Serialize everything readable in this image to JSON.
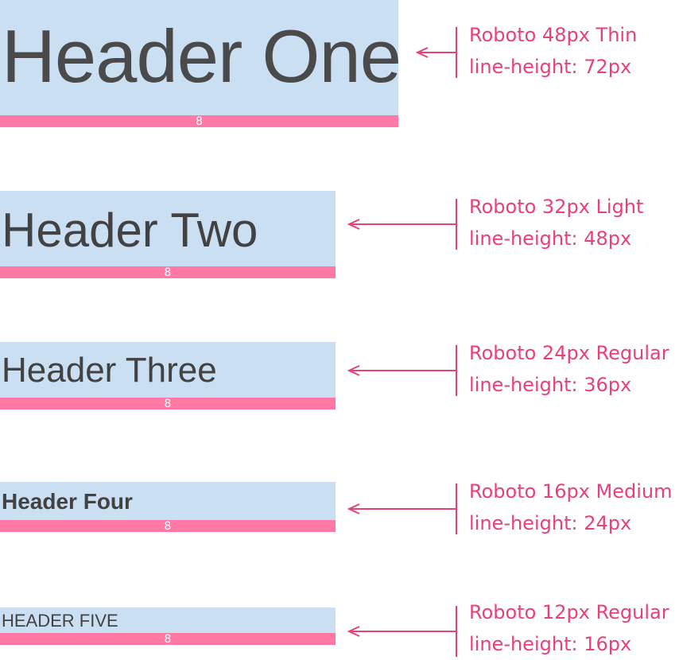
{
  "colors": {
    "box_fill": "#cbdff3",
    "baseline_bar": "#ff79a4",
    "annotation": "#e8407c",
    "header_text": "#424242"
  },
  "specs": [
    {
      "header_text": "Header One",
      "bar_label": "8",
      "font_line": "Roboto 48px Thin",
      "line_height_line": "line-height: 72px"
    },
    {
      "header_text": "Header Two",
      "bar_label": "8",
      "font_line": "Roboto 32px Light",
      "line_height_line": "line-height: 48px"
    },
    {
      "header_text": "Header Three",
      "bar_label": "8",
      "font_line": "Roboto 24px Regular",
      "line_height_line": "line-height: 36px"
    },
    {
      "header_text": "Header Four",
      "bar_label": "8",
      "font_line": "Roboto 16px Medium",
      "line_height_line": "line-height: 24px"
    },
    {
      "header_text": "HEADER FIVE",
      "bar_label": "8",
      "font_line": "Roboto 12px Regular",
      "line_height_line": "line-height: 16px"
    }
  ]
}
